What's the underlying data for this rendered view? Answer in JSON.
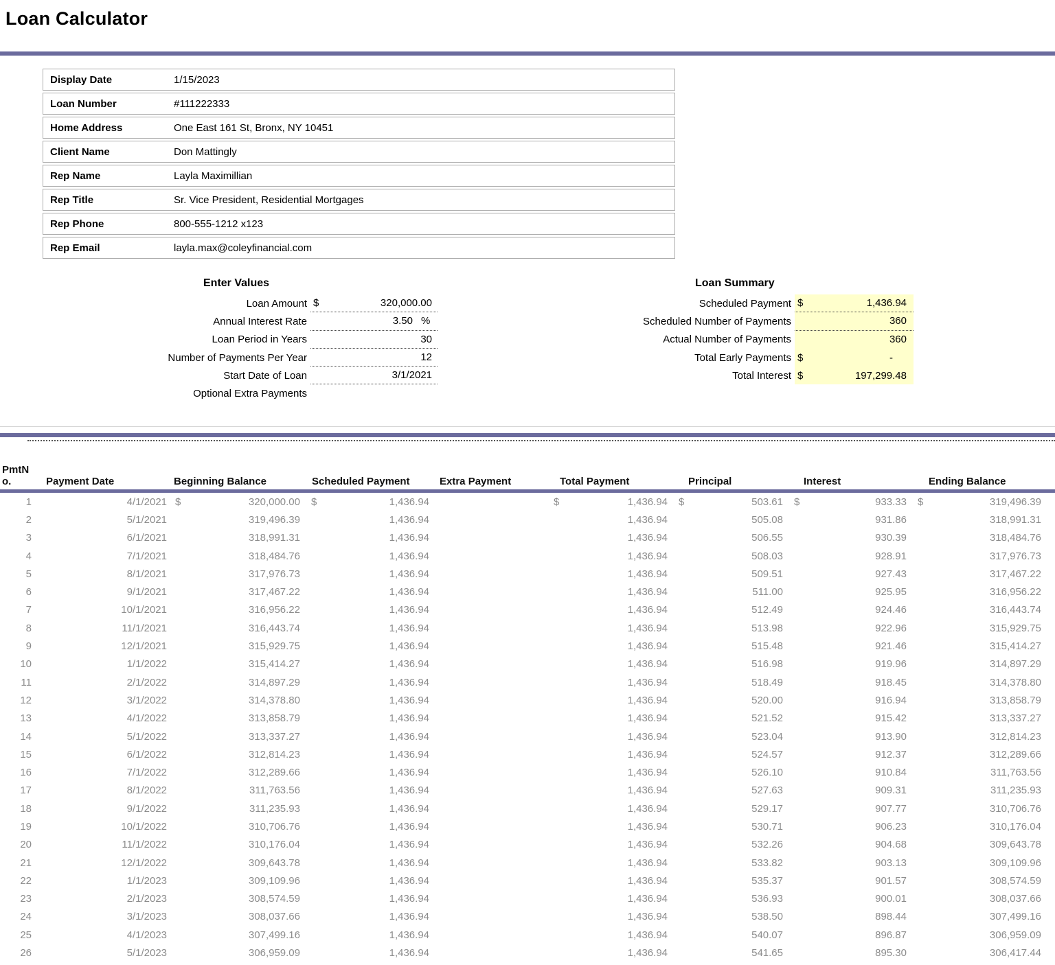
{
  "title": "Loan Calculator",
  "info": {
    "rows": [
      {
        "label": "Display Date",
        "value": "1/15/2023"
      },
      {
        "label": "Loan Number",
        "value": "#111222333"
      },
      {
        "label": "Home Address",
        "value": "One East 161 St, Bronx, NY 10451"
      },
      {
        "label": "Client Name",
        "value": "Don Mattingly"
      },
      {
        "label": "Rep Name",
        "value": "Layla Maximillian"
      },
      {
        "label": "Rep Title",
        "value": "Sr. Vice President, Residential Mortgages"
      },
      {
        "label": "Rep Phone",
        "value": "800-555-1212 x123"
      },
      {
        "label": "Rep Email",
        "value": "layla.max@coleyfinancial.com"
      }
    ]
  },
  "enter_values": {
    "heading": "Enter Values",
    "fields": [
      {
        "label": "Loan Amount",
        "prefix": "$",
        "value": "320,000.00",
        "suffix": "",
        "underline": true
      },
      {
        "label": "Annual Interest Rate",
        "prefix": "",
        "value": "3.50",
        "suffix": "%",
        "underline": true
      },
      {
        "label": "Loan Period in Years",
        "prefix": "",
        "value": "30",
        "suffix": "",
        "underline": true
      },
      {
        "label": "Number of Payments Per Year",
        "prefix": "",
        "value": "12",
        "suffix": "",
        "underline": true
      },
      {
        "label": "Start Date of Loan",
        "prefix": "",
        "value": "3/1/2021",
        "suffix": "",
        "underline": true
      },
      {
        "label": "Optional Extra Payments",
        "prefix": "",
        "value": "",
        "suffix": "",
        "underline": false
      }
    ]
  },
  "loan_summary": {
    "heading": "Loan Summary",
    "highlight_color": "#FFFFCC",
    "fields": [
      {
        "label": "Scheduled Payment",
        "prefix": "$",
        "value": "1,436.94",
        "suffix": "",
        "underline": true
      },
      {
        "label": "Scheduled Number of Payments",
        "prefix": "",
        "value": "360",
        "suffix": "",
        "underline": true
      },
      {
        "label": "Actual Number of Payments",
        "prefix": "",
        "value": "360",
        "suffix": "",
        "underline": false
      },
      {
        "label": "Total Early Payments",
        "prefix": "$",
        "value": "-",
        "suffix": "",
        "underline": false
      },
      {
        "label": "Total Interest",
        "prefix": "$",
        "value": "197,299.48",
        "suffix": "",
        "underline": false
      }
    ]
  },
  "schedule_table": {
    "currency_symbol": "$",
    "headers": [
      "PmtNo.",
      "Payment Date",
      "Beginning Balance",
      "Scheduled Payment",
      "Extra Payment",
      "Total Payment",
      "Principal",
      "Interest",
      "Ending Balance"
    ],
    "col_keys": [
      "pmt_no",
      "payment_date",
      "beginning_balance",
      "scheduled_payment",
      "extra_payment",
      "total_payment",
      "principal",
      "interest",
      "ending_balance"
    ],
    "rows": [
      [
        "1",
        "4/1/2021",
        "320,000.00",
        "1,436.94",
        "",
        "1,436.94",
        "503.61",
        "933.33",
        "319,496.39"
      ],
      [
        "2",
        "5/1/2021",
        "319,496.39",
        "1,436.94",
        "",
        "1,436.94",
        "505.08",
        "931.86",
        "318,991.31"
      ],
      [
        "3",
        "6/1/2021",
        "318,991.31",
        "1,436.94",
        "",
        "1,436.94",
        "506.55",
        "930.39",
        "318,484.76"
      ],
      [
        "4",
        "7/1/2021",
        "318,484.76",
        "1,436.94",
        "",
        "1,436.94",
        "508.03",
        "928.91",
        "317,976.73"
      ],
      [
        "5",
        "8/1/2021",
        "317,976.73",
        "1,436.94",
        "",
        "1,436.94",
        "509.51",
        "927.43",
        "317,467.22"
      ],
      [
        "6",
        "9/1/2021",
        "317,467.22",
        "1,436.94",
        "",
        "1,436.94",
        "511.00",
        "925.95",
        "316,956.22"
      ],
      [
        "7",
        "10/1/2021",
        "316,956.22",
        "1,436.94",
        "",
        "1,436.94",
        "512.49",
        "924.46",
        "316,443.74"
      ],
      [
        "8",
        "11/1/2021",
        "316,443.74",
        "1,436.94",
        "",
        "1,436.94",
        "513.98",
        "922.96",
        "315,929.75"
      ],
      [
        "9",
        "12/1/2021",
        "315,929.75",
        "1,436.94",
        "",
        "1,436.94",
        "515.48",
        "921.46",
        "315,414.27"
      ],
      [
        "10",
        "1/1/2022",
        "315,414.27",
        "1,436.94",
        "",
        "1,436.94",
        "516.98",
        "919.96",
        "314,897.29"
      ],
      [
        "11",
        "2/1/2022",
        "314,897.29",
        "1,436.94",
        "",
        "1,436.94",
        "518.49",
        "918.45",
        "314,378.80"
      ],
      [
        "12",
        "3/1/2022",
        "314,378.80",
        "1,436.94",
        "",
        "1,436.94",
        "520.00",
        "916.94",
        "313,858.79"
      ],
      [
        "13",
        "4/1/2022",
        "313,858.79",
        "1,436.94",
        "",
        "1,436.94",
        "521.52",
        "915.42",
        "313,337.27"
      ],
      [
        "14",
        "5/1/2022",
        "313,337.27",
        "1,436.94",
        "",
        "1,436.94",
        "523.04",
        "913.90",
        "312,814.23"
      ],
      [
        "15",
        "6/1/2022",
        "312,814.23",
        "1,436.94",
        "",
        "1,436.94",
        "524.57",
        "912.37",
        "312,289.66"
      ],
      [
        "16",
        "7/1/2022",
        "312,289.66",
        "1,436.94",
        "",
        "1,436.94",
        "526.10",
        "910.84",
        "311,763.56"
      ],
      [
        "17",
        "8/1/2022",
        "311,763.56",
        "1,436.94",
        "",
        "1,436.94",
        "527.63",
        "909.31",
        "311,235.93"
      ],
      [
        "18",
        "9/1/2022",
        "311,235.93",
        "1,436.94",
        "",
        "1,436.94",
        "529.17",
        "907.77",
        "310,706.76"
      ],
      [
        "19",
        "10/1/2022",
        "310,706.76",
        "1,436.94",
        "",
        "1,436.94",
        "530.71",
        "906.23",
        "310,176.04"
      ],
      [
        "20",
        "11/1/2022",
        "310,176.04",
        "1,436.94",
        "",
        "1,436.94",
        "532.26",
        "904.68",
        "309,643.78"
      ],
      [
        "21",
        "12/1/2022",
        "309,643.78",
        "1,436.94",
        "",
        "1,436.94",
        "533.82",
        "903.13",
        "309,109.96"
      ],
      [
        "22",
        "1/1/2023",
        "309,109.96",
        "1,436.94",
        "",
        "1,436.94",
        "535.37",
        "901.57",
        "308,574.59"
      ],
      [
        "23",
        "2/1/2023",
        "308,574.59",
        "1,436.94",
        "",
        "1,436.94",
        "536.93",
        "900.01",
        "308,037.66"
      ],
      [
        "24",
        "3/1/2023",
        "308,037.66",
        "1,436.94",
        "",
        "1,436.94",
        "538.50",
        "898.44",
        "307,499.16"
      ],
      [
        "25",
        "4/1/2023",
        "307,499.16",
        "1,436.94",
        "",
        "1,436.94",
        "540.07",
        "896.87",
        "306,959.09"
      ],
      [
        "26",
        "5/1/2023",
        "306,959.09",
        "1,436.94",
        "",
        "1,436.94",
        "541.65",
        "895.30",
        "306,417.44"
      ]
    ]
  },
  "colors": {
    "accent_purple": "#6B6B9D",
    "summary_highlight": "#FFFFCC",
    "row_text_gray": "#8C8C8C"
  }
}
